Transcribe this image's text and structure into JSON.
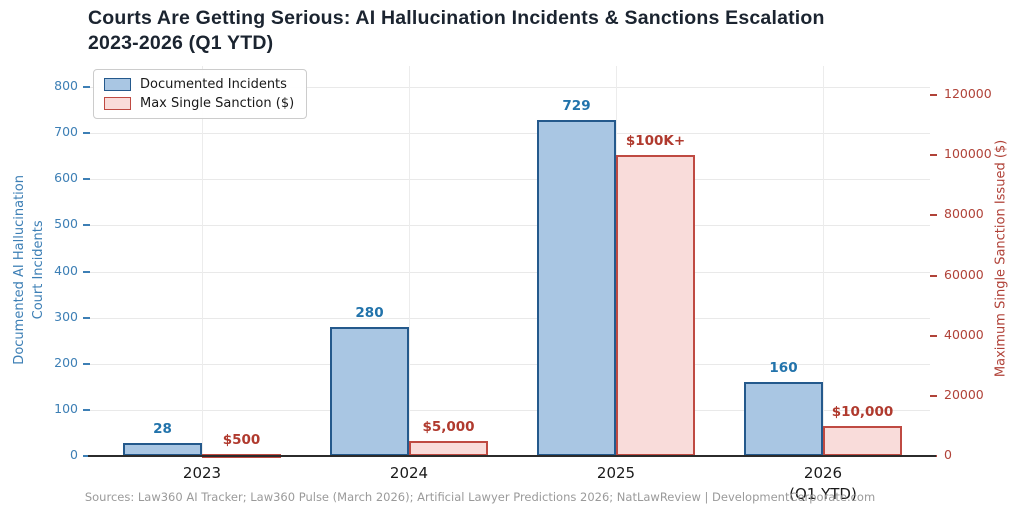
{
  "page": {
    "background": "#ffffff"
  },
  "chart_data": {
    "type": "bar",
    "title": "Courts Are Getting Serious: AI Hallucination Incidents & Sanctions Escalation 2023-2026 (Q1 YTD)",
    "title_lines": [
      "Courts Are Getting Serious: AI Hallucination Incidents & Sanctions Escalation",
      "2023-2026 (Q1 YTD)"
    ],
    "title_color": "#1b2430",
    "categories": [
      "2023",
      "2024",
      "2025",
      "2026\n(Q1 YTD)"
    ],
    "grid": true,
    "legend_position": "upper left",
    "axes": {
      "left": {
        "title": "Documented AI Hallucination\nCourt Incidents",
        "range": [
          0,
          800
        ],
        "ticks": [
          0,
          100,
          200,
          300,
          400,
          500,
          600,
          700,
          800
        ],
        "color": "#3d7fb5"
      },
      "right": {
        "title": "Maximum Single Sanction Issued ($)",
        "range": [
          0,
          120000
        ],
        "ticks": [
          0,
          20000,
          40000,
          60000,
          80000,
          100000,
          120000
        ],
        "color": "#b04238"
      }
    },
    "series": [
      {
        "name": "Documented Incidents",
        "axis": "left",
        "values": [
          28,
          280,
          729,
          160
        ],
        "value_labels": [
          "28",
          "280",
          "729",
          "160"
        ],
        "fill": "#a9c6e3",
        "edge": "#24598c",
        "label_color": "#2273ab"
      },
      {
        "name": "Max Single Sanction ($)",
        "axis": "right",
        "values": [
          500,
          5000,
          100000,
          10000
        ],
        "value_labels": [
          "$500",
          "$5,000",
          "$100K+",
          "$10,000"
        ],
        "fill": "#f9dcda",
        "edge": "#bf4a42",
        "label_color": "#b03a2e"
      }
    ]
  },
  "footer": "Sources: Law360 AI Tracker; Law360 Pulse (March 2026); Artificial Lawyer Predictions 2026; NatLawReview  |  DevelopmentCorporate.com"
}
